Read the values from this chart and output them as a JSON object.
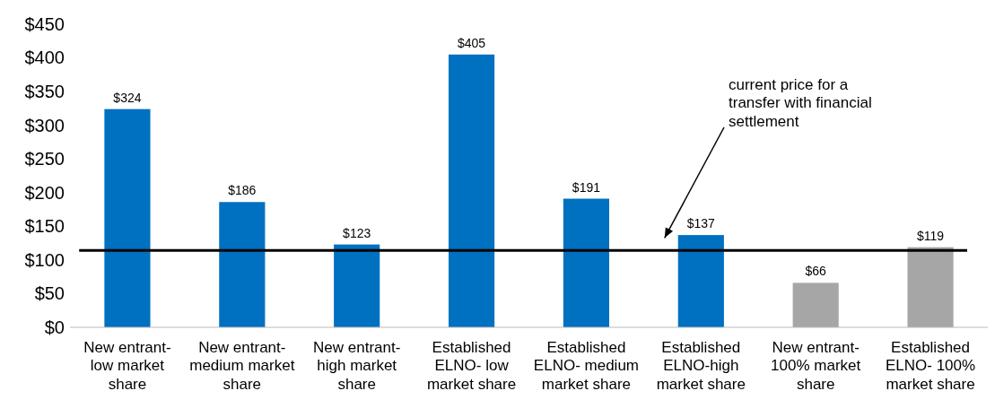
{
  "chart_data": {
    "type": "bar",
    "categories": [
      "New entrant- low market share",
      "New entrant- medium market share",
      "New entrant- high market share",
      "Established ELNO- low market share",
      "Established ELNO- medium market share",
      "Established ELNO-high market share",
      "New entrant- 100% market share",
      "Established ELNO- 100% market share"
    ],
    "values": [
      324,
      186,
      123,
      405,
      191,
      137,
      66,
      119
    ],
    "colors": [
      "#0070c0",
      "#0070c0",
      "#0070c0",
      "#0070c0",
      "#0070c0",
      "#0070c0",
      "#a6a6a6",
      "#a6a6a6"
    ],
    "value_labels": [
      "$324",
      "$186",
      "$123",
      "$405",
      "$191",
      "$137",
      "$66",
      "$119"
    ],
    "ylim": [
      0,
      450
    ],
    "yticks": [
      {
        "value": 0,
        "label": "$0"
      },
      {
        "value": 50,
        "label": "$50"
      },
      {
        "value": 100,
        "label": "$100"
      },
      {
        "value": 150,
        "label": "$150"
      },
      {
        "value": 200,
        "label": "$200"
      },
      {
        "value": 250,
        "label": "$250"
      },
      {
        "value": 300,
        "label": "$300"
      },
      {
        "value": 350,
        "label": "$350"
      },
      {
        "value": 400,
        "label": "$400"
      },
      {
        "value": 450,
        "label": "$450"
      }
    ],
    "ref_lines": [
      {
        "axis": "y",
        "value": 114,
        "label": "current price for a transfer with financial settlement",
        "color": "#000000"
      }
    ],
    "grid": false
  }
}
